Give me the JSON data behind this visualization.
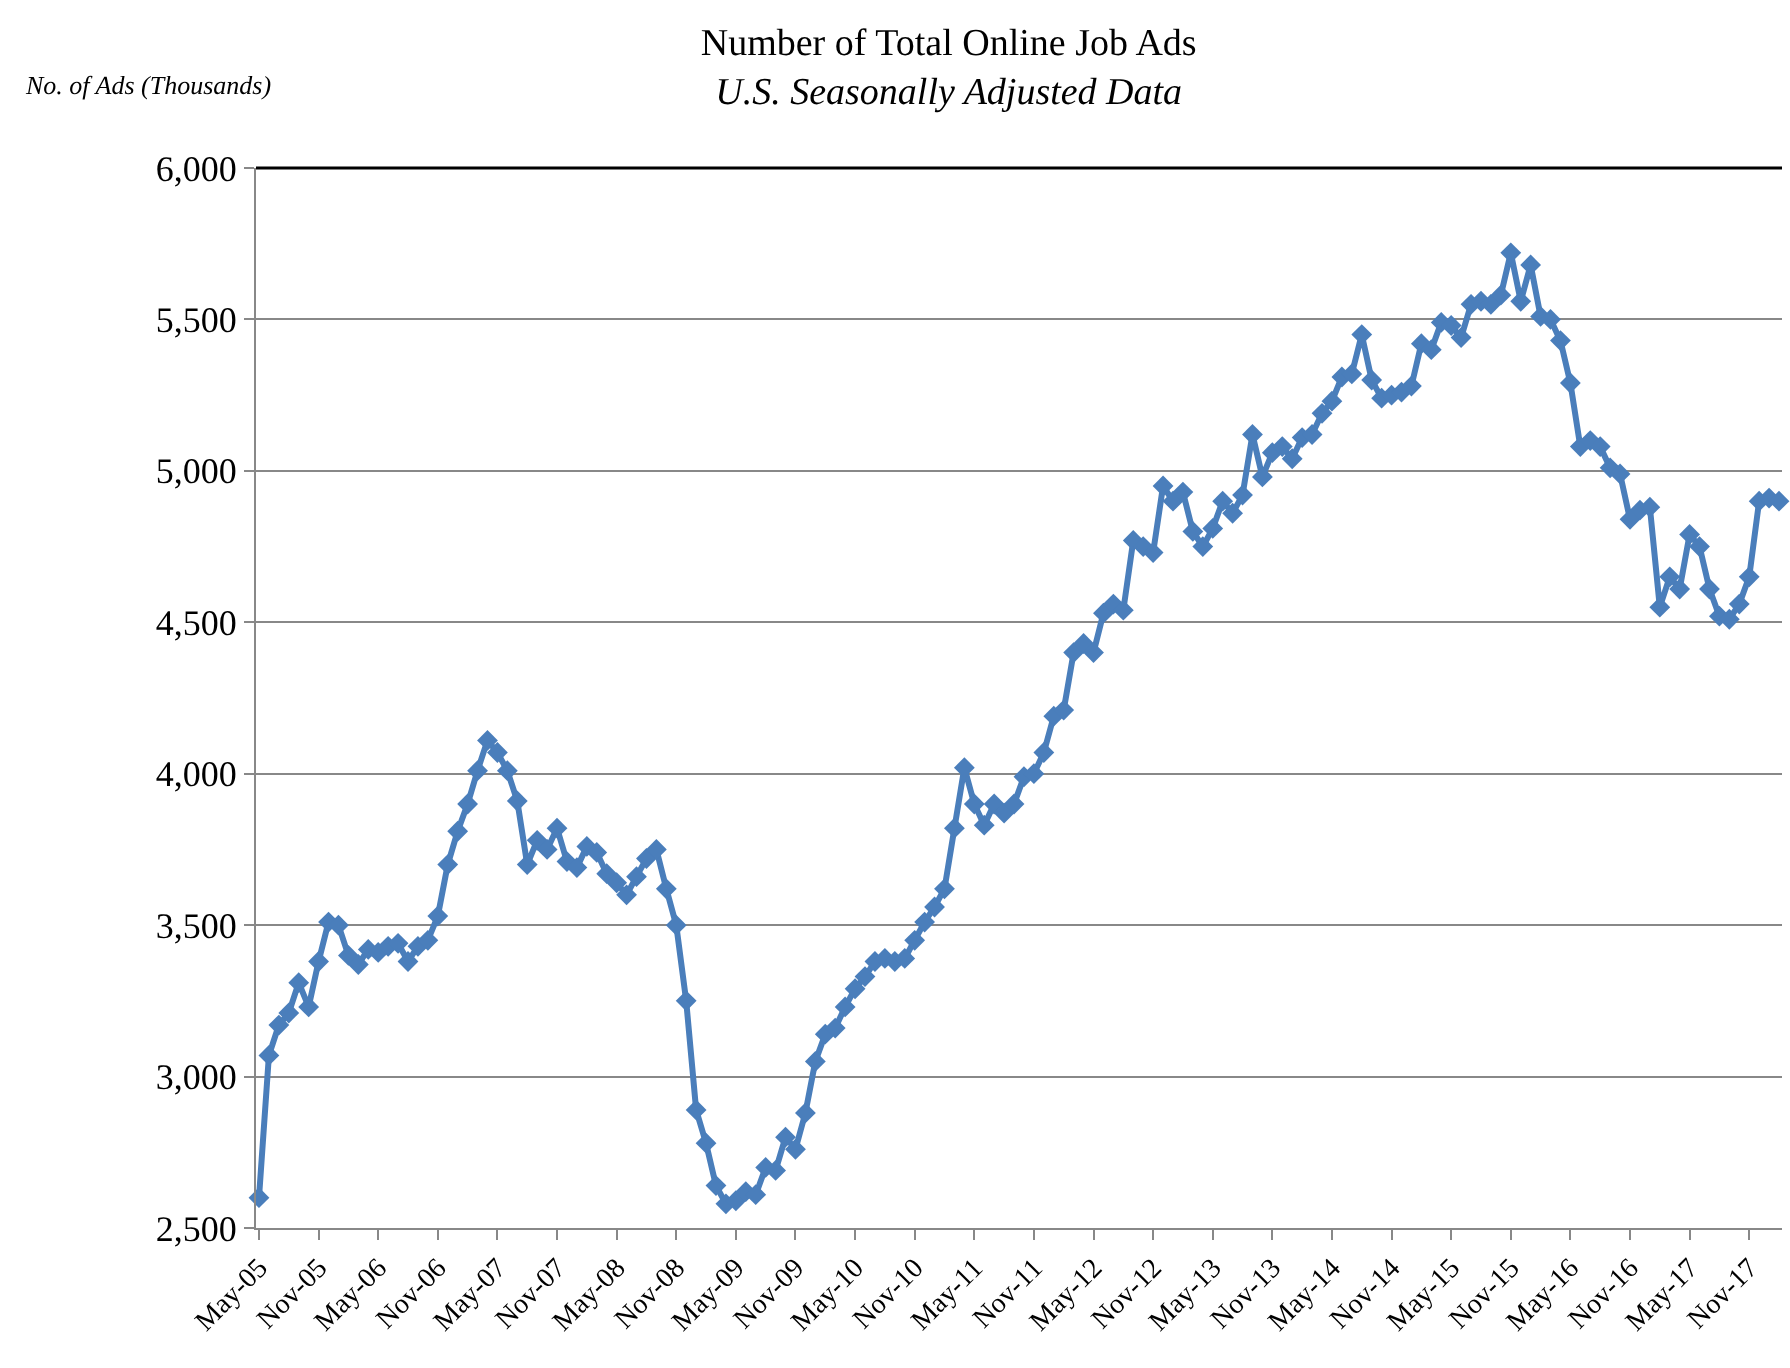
{
  "chart_data": {
    "type": "line",
    "title": "Number of Total Online Job Ads",
    "subtitle": "U.S. Seasonally Adjusted Data",
    "ylabel": "No. of Ads (Thousands)",
    "categories": [
      "May-05",
      null,
      null,
      null,
      null,
      null,
      "Nov-05",
      null,
      null,
      null,
      null,
      null,
      "May-06",
      null,
      null,
      null,
      null,
      null,
      "Nov-06",
      null,
      null,
      null,
      null,
      null,
      "May-07",
      null,
      null,
      null,
      null,
      null,
      "Nov-07",
      null,
      null,
      null,
      null,
      null,
      "May-08",
      null,
      null,
      null,
      null,
      null,
      "Nov-08",
      null,
      null,
      null,
      null,
      null,
      "May-09",
      null,
      null,
      null,
      null,
      null,
      "Nov-09",
      null,
      null,
      null,
      null,
      null,
      "May-10",
      null,
      null,
      null,
      null,
      null,
      "Nov-10",
      null,
      null,
      null,
      null,
      null,
      "May-11",
      null,
      null,
      null,
      null,
      null,
      "Nov-11",
      null,
      null,
      null,
      null,
      null,
      "May-12",
      null,
      null,
      null,
      null,
      null,
      "Nov-12",
      null,
      null,
      null,
      null,
      null,
      "May-13",
      null,
      null,
      null,
      null,
      null,
      "Nov-13",
      null,
      null,
      null,
      null,
      null,
      "May-14",
      null,
      null,
      null,
      null,
      null,
      "Nov-14",
      null,
      null,
      null,
      null,
      null,
      "May-15",
      null,
      null,
      null,
      null,
      null,
      "Nov-15",
      null,
      null,
      null,
      null,
      null,
      "May-16",
      null,
      null,
      null,
      null,
      null,
      "Nov-16",
      null,
      null,
      null,
      null,
      null,
      "May-17",
      null,
      null,
      null,
      null,
      null,
      "Nov-17",
      null,
      null,
      null
    ],
    "series": [
      {
        "color": "#4a7ebb",
        "values": [
          2600,
          3070,
          3170,
          3210,
          3310,
          3230,
          3380,
          3510,
          3500,
          3400,
          3370,
          3420,
          3410,
          3430,
          3440,
          3380,
          3430,
          3450,
          3530,
          3700,
          3810,
          3900,
          4010,
          4110,
          4070,
          4010,
          3910,
          3700,
          3780,
          3750,
          3820,
          3710,
          3690,
          3760,
          3740,
          3670,
          3640,
          3600,
          3660,
          3720,
          3750,
          3620,
          3500,
          3250,
          2890,
          2780,
          2640,
          2580,
          2590,
          2620,
          2610,
          2700,
          2690,
          2800,
          2760,
          2880,
          3050,
          3140,
          3160,
          3230,
          3290,
          3330,
          3380,
          3390,
          3380,
          3390,
          3450,
          3510,
          3560,
          3620,
          3820,
          4020,
          3900,
          3830,
          3900,
          3870,
          3900,
          3990,
          4000,
          4070,
          4190,
          4210,
          4400,
          4430,
          4400,
          4530,
          4560,
          4540,
          4770,
          4750,
          4730,
          4950,
          4900,
          4930,
          4800,
          4750,
          4810,
          4900,
          4860,
          4920,
          5120,
          4980,
          5060,
          5080,
          5040,
          5110,
          5120,
          5190,
          5230,
          5310,
          5320,
          5450,
          5300,
          5240,
          5250,
          5260,
          5280,
          5420,
          5400,
          5490,
          5480,
          5440,
          5550,
          5560,
          5550,
          5580,
          5720,
          5560,
          5680,
          5510,
          5500,
          5430,
          5290,
          5080,
          5100,
          5080,
          5010,
          4990,
          4840,
          4870,
          4880,
          4550,
          4650,
          4610,
          4790,
          4750,
          4610,
          4520,
          4510,
          4560,
          4650,
          4900,
          4910,
          4900
        ]
      }
    ],
    "ylim": [
      2500,
      6000
    ],
    "yticks": [
      {
        "value": 2500,
        "label": "2,500"
      },
      {
        "value": 3000,
        "label": "3,000"
      },
      {
        "value": 3500,
        "label": "3,500"
      },
      {
        "value": 4000,
        "label": "4,000"
      },
      {
        "value": 4500,
        "label": "4,500"
      },
      {
        "value": 5000,
        "label": "5,000"
      },
      {
        "value": 5500,
        "label": "5,500"
      },
      {
        "value": 6000,
        "label": "6,000"
      }
    ],
    "grid": "y",
    "marker": "diamond",
    "line_style": "solid",
    "legend": false
  }
}
